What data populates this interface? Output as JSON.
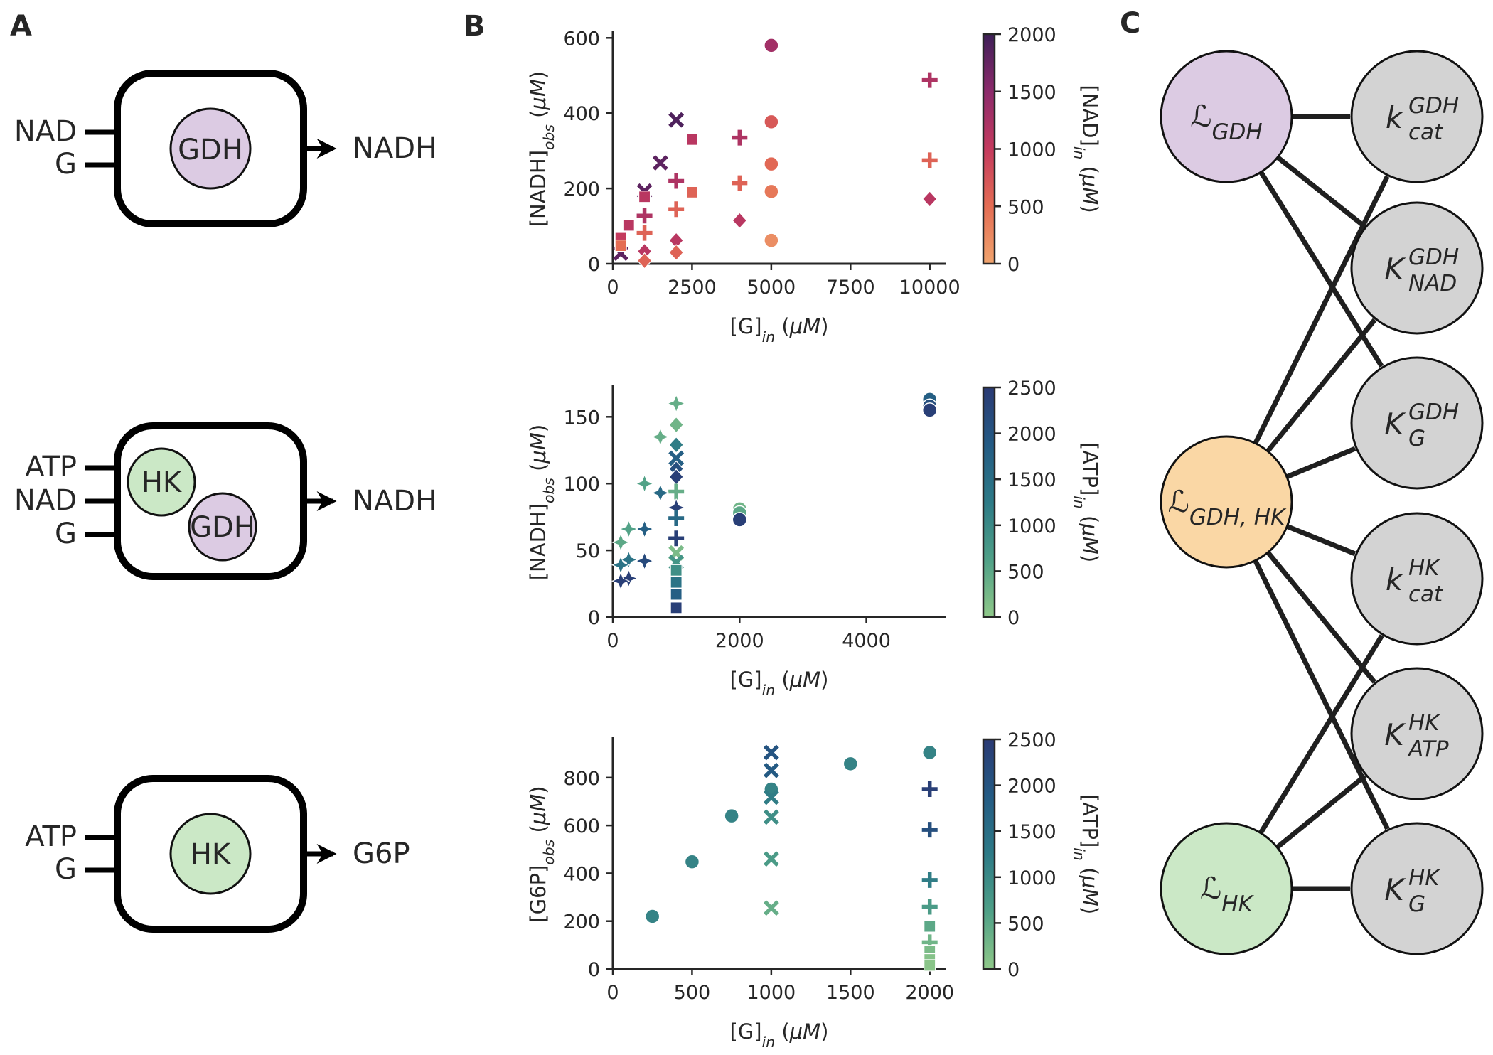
{
  "panels": {
    "a": "A",
    "b": "B",
    "c": "C"
  },
  "schematics": [
    {
      "inputs": [
        "NAD",
        "G"
      ],
      "enzymes": [
        "GDH"
      ],
      "output": "NADH"
    },
    {
      "inputs": [
        "ATP",
        "NAD",
        "G"
      ],
      "enzymes": [
        "HK",
        "GDH"
      ],
      "output": "NADH"
    },
    {
      "inputs": [
        "ATP",
        "G"
      ],
      "enzymes": [
        "HK"
      ],
      "output": "G6P"
    }
  ],
  "colors": {
    "gdh": "#dccbe3",
    "hk": "#cbe8c6",
    "joint": "#fad7a5",
    "param": "#d3d3d3",
    "ink": "#262626",
    "box": "#000000"
  },
  "chart_data": [
    {
      "type": "scatter",
      "xlabel": "[G]in (μM)",
      "ylabel": "[NADH]obs (μM)",
      "xlim": [
        0,
        10500
      ],
      "ylim": [
        0,
        610
      ],
      "xticks": [
        "0",
        "2500",
        "5000",
        "7500",
        "10000"
      ],
      "yticks": [
        "0",
        "200",
        "400",
        "600"
      ],
      "colorbar": {
        "label": "[NAD]in (μM)",
        "ticks": [
          "0",
          "500",
          "1000",
          "1500",
          "2000"
        ],
        "range": [
          0,
          2000
        ],
        "colors": [
          "#f0a46e",
          "#e46d54",
          "#c43a5e",
          "#8c2a6b",
          "#3e1f58"
        ]
      },
      "grid": false,
      "points": [
        {
          "x": 5000,
          "y": 580,
          "c": 1300,
          "m": "circle"
        },
        {
          "x": 5000,
          "y": 377,
          "c": 700,
          "m": "circle"
        },
        {
          "x": 5000,
          "y": 265,
          "c": 550,
          "m": "circle"
        },
        {
          "x": 5000,
          "y": 192,
          "c": 400,
          "m": "circle"
        },
        {
          "x": 5000,
          "y": 62,
          "c": 200,
          "m": "circle"
        },
        {
          "x": 10000,
          "y": 488,
          "c": 1200,
          "m": "plus"
        },
        {
          "x": 10000,
          "y": 275,
          "c": 600,
          "m": "plus"
        },
        {
          "x": 10000,
          "y": 172,
          "c": 1100,
          "m": "diamond"
        },
        {
          "x": 4000,
          "y": 335,
          "c": 1200,
          "m": "plus"
        },
        {
          "x": 4000,
          "y": 214,
          "c": 600,
          "m": "plus"
        },
        {
          "x": 4000,
          "y": 115,
          "c": 1100,
          "m": "diamond"
        },
        {
          "x": 2000,
          "y": 382,
          "c": 1900,
          "m": "x"
        },
        {
          "x": 1500,
          "y": 268,
          "c": 1800,
          "m": "x"
        },
        {
          "x": 1000,
          "y": 193,
          "c": 1800,
          "m": "x"
        },
        {
          "x": 250,
          "y": 28,
          "c": 1800,
          "m": "x"
        },
        {
          "x": 2500,
          "y": 330,
          "c": 1100,
          "m": "square"
        },
        {
          "x": 2500,
          "y": 190,
          "c": 600,
          "m": "square"
        },
        {
          "x": 1000,
          "y": 178,
          "c": 1100,
          "m": "square"
        },
        {
          "x": 500,
          "y": 102,
          "c": 1100,
          "m": "square"
        },
        {
          "x": 250,
          "y": 68,
          "c": 1000,
          "m": "square"
        },
        {
          "x": 2000,
          "y": 220,
          "c": 1200,
          "m": "plus"
        },
        {
          "x": 2000,
          "y": 145,
          "c": 600,
          "m": "plus"
        },
        {
          "x": 1000,
          "y": 128,
          "c": 1200,
          "m": "plus"
        },
        {
          "x": 1000,
          "y": 82,
          "c": 600,
          "m": "plus"
        },
        {
          "x": 2000,
          "y": 62,
          "c": 1100,
          "m": "diamond"
        },
        {
          "x": 2000,
          "y": 30,
          "c": 600,
          "m": "diamond"
        },
        {
          "x": 1000,
          "y": 33,
          "c": 1100,
          "m": "diamond"
        },
        {
          "x": 1000,
          "y": 8,
          "c": 600,
          "m": "diamond"
        },
        {
          "x": 250,
          "y": 48,
          "c": 500,
          "m": "square"
        }
      ]
    },
    {
      "type": "scatter",
      "xlabel": "[G]in (μM)",
      "ylabel": "[NADH]obs (μM)",
      "xlim": [
        0,
        5250
      ],
      "ylim": [
        0,
        172
      ],
      "xticks": [
        "0",
        "2000",
        "4000"
      ],
      "yticks": [
        "0",
        "50",
        "100",
        "150"
      ],
      "colorbar": {
        "label": "[ATP]in (μM)",
        "ticks": [
          "0",
          "500",
          "1000",
          "1500",
          "2000",
          "2500"
        ],
        "range": [
          0,
          2500
        ],
        "colors": [
          "#8fc889",
          "#4fa087",
          "#2d7a86",
          "#245b84",
          "#2a3a74"
        ]
      },
      "grid": false,
      "points": [
        {
          "x": 5000,
          "y": 163,
          "c": 1800,
          "m": "circle"
        },
        {
          "x": 5000,
          "y": 158,
          "c": 2100,
          "m": "circle"
        },
        {
          "x": 5000,
          "y": 155,
          "c": 2400,
          "m": "circle"
        },
        {
          "x": 2000,
          "y": 81,
          "c": 300,
          "m": "circle"
        },
        {
          "x": 2000,
          "y": 78,
          "c": 500,
          "m": "circle"
        },
        {
          "x": 2000,
          "y": 73,
          "c": 2400,
          "m": "circle"
        },
        {
          "x": 1000,
          "y": 160,
          "c": 400,
          "m": "star"
        },
        {
          "x": 1000,
          "y": 144,
          "c": 300,
          "m": "diamond"
        },
        {
          "x": 1000,
          "y": 129,
          "c": 1200,
          "m": "diamond"
        },
        {
          "x": 1000,
          "y": 119,
          "c": 1800,
          "m": "x"
        },
        {
          "x": 1000,
          "y": 111,
          "c": 2100,
          "m": "diamond"
        },
        {
          "x": 1000,
          "y": 105,
          "c": 2400,
          "m": "diamond"
        },
        {
          "x": 1000,
          "y": 94,
          "c": 400,
          "m": "plus"
        },
        {
          "x": 1000,
          "y": 82,
          "c": 2400,
          "m": "star"
        },
        {
          "x": 1000,
          "y": 74,
          "c": 1600,
          "m": "plus"
        },
        {
          "x": 1000,
          "y": 59,
          "c": 2400,
          "m": "plus"
        },
        {
          "x": 1000,
          "y": 48,
          "c": 200,
          "m": "x"
        },
        {
          "x": 1000,
          "y": 41,
          "c": 800,
          "m": "x"
        },
        {
          "x": 1000,
          "y": 35,
          "c": 900,
          "m": "square"
        },
        {
          "x": 1000,
          "y": 26,
          "c": 1400,
          "m": "square"
        },
        {
          "x": 1000,
          "y": 17,
          "c": 1800,
          "m": "square"
        },
        {
          "x": 1000,
          "y": 7,
          "c": 2400,
          "m": "square"
        },
        {
          "x": 750,
          "y": 135,
          "c": 400,
          "m": "star"
        },
        {
          "x": 750,
          "y": 93,
          "c": 1600,
          "m": "star"
        },
        {
          "x": 500,
          "y": 100,
          "c": 600,
          "m": "star"
        },
        {
          "x": 500,
          "y": 66,
          "c": 1800,
          "m": "star"
        },
        {
          "x": 500,
          "y": 42,
          "c": 2200,
          "m": "star"
        },
        {
          "x": 250,
          "y": 66,
          "c": 600,
          "m": "star"
        },
        {
          "x": 250,
          "y": 43,
          "c": 1400,
          "m": "star"
        },
        {
          "x": 250,
          "y": 29,
          "c": 2400,
          "m": "star"
        },
        {
          "x": 125,
          "y": 56,
          "c": 500,
          "m": "star"
        },
        {
          "x": 125,
          "y": 39,
          "c": 1400,
          "m": "star"
        },
        {
          "x": 125,
          "y": 27,
          "c": 2400,
          "m": "star"
        }
      ]
    },
    {
      "type": "scatter",
      "xlabel": "[G]in (μM)",
      "ylabel": "[G6P]obs (μM)",
      "xlim": [
        0,
        2100
      ],
      "ylim": [
        0,
        960
      ],
      "xticks": [
        "0",
        "500",
        "1000",
        "1500",
        "2000"
      ],
      "yticks": [
        "0",
        "200",
        "400",
        "600",
        "800"
      ],
      "colorbar": {
        "label": "[ATP]in (μM)",
        "ticks": [
          "0",
          "500",
          "1000",
          "1500",
          "2000",
          "2500"
        ],
        "range": [
          0,
          2500
        ],
        "colors": [
          "#8fc889",
          "#4fa087",
          "#2d7a86",
          "#245b84",
          "#2a3a74"
        ]
      },
      "grid": false,
      "points": [
        {
          "x": 250,
          "y": 220,
          "c": 1100,
          "m": "circle"
        },
        {
          "x": 500,
          "y": 448,
          "c": 1100,
          "m": "circle"
        },
        {
          "x": 750,
          "y": 640,
          "c": 1100,
          "m": "circle"
        },
        {
          "x": 1000,
          "y": 752,
          "c": 1100,
          "m": "circle"
        },
        {
          "x": 1500,
          "y": 858,
          "c": 1100,
          "m": "circle"
        },
        {
          "x": 2000,
          "y": 905,
          "c": 1100,
          "m": "circle"
        },
        {
          "x": 1000,
          "y": 905,
          "c": 2000,
          "m": "x"
        },
        {
          "x": 1000,
          "y": 830,
          "c": 1900,
          "m": "x"
        },
        {
          "x": 1000,
          "y": 718,
          "c": 1200,
          "m": "x"
        },
        {
          "x": 1000,
          "y": 635,
          "c": 900,
          "m": "x"
        },
        {
          "x": 1000,
          "y": 460,
          "c": 700,
          "m": "x"
        },
        {
          "x": 1000,
          "y": 255,
          "c": 400,
          "m": "x"
        },
        {
          "x": 2000,
          "y": 752,
          "c": 2400,
          "m": "plus"
        },
        {
          "x": 2000,
          "y": 582,
          "c": 2100,
          "m": "plus"
        },
        {
          "x": 2000,
          "y": 372,
          "c": 1200,
          "m": "plus"
        },
        {
          "x": 2000,
          "y": 260,
          "c": 700,
          "m": "plus"
        },
        {
          "x": 2000,
          "y": 178,
          "c": 500,
          "m": "square"
        },
        {
          "x": 2000,
          "y": 112,
          "c": 300,
          "m": "plus"
        },
        {
          "x": 2000,
          "y": 75,
          "c": 200,
          "m": "square"
        },
        {
          "x": 2000,
          "y": 40,
          "c": 100,
          "m": "square"
        },
        {
          "x": 2000,
          "y": 15,
          "c": 50,
          "m": "square"
        }
      ]
    }
  ],
  "network": {
    "top_nodes": [
      {
        "id": "gdh",
        "base": "ℒ",
        "sub": "GDH"
      },
      {
        "id": "joint",
        "base": "ℒ",
        "sub": "GDH, HK"
      },
      {
        "id": "hk",
        "base": "ℒ",
        "sub": "HK"
      }
    ],
    "param_nodes": [
      {
        "base": "k",
        "sup": "GDH",
        "sub": "cat"
      },
      {
        "base": "K",
        "sup": "GDH",
        "sub": "NAD"
      },
      {
        "base": "K",
        "sup": "GDH",
        "sub": "G"
      },
      {
        "base": "k",
        "sup": "HK",
        "sub": "cat"
      },
      {
        "base": "K",
        "sup": "HK",
        "sub": "ATP"
      },
      {
        "base": "K",
        "sup": "HK",
        "sub": "G"
      }
    ]
  }
}
